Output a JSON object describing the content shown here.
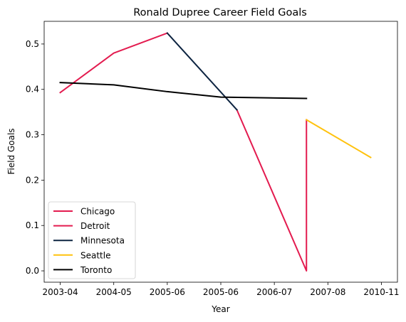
{
  "chart_data": {
    "type": "line",
    "title": "Ronald Dupree Career Field Goals",
    "xlabel": "Year",
    "ylabel": "Field Goals",
    "categories": [
      "2003-04",
      "2004-05",
      "2005-06",
      "2005-06",
      "2006-07",
      "2007-08",
      "2010-11"
    ],
    "x_tick_positions": [
      0,
      1,
      2,
      3,
      4,
      5,
      6
    ],
    "xlim": [
      -0.3,
      6.3
    ],
    "ylim": [
      -0.025,
      0.55
    ],
    "yticks": [
      0.0,
      0.1,
      0.2,
      0.3,
      0.4,
      0.5
    ],
    "ytick_labels": [
      "0.0",
      "0.1",
      "0.2",
      "0.3",
      "0.4",
      "0.5"
    ],
    "grid": false,
    "legend_position": "lower-left",
    "series": [
      {
        "name": "Chicago",
        "color": "#e31b4f",
        "points": [
          [
            0.0,
            0.393
          ],
          [
            1.0,
            0.48
          ],
          [
            2.0,
            0.524
          ]
        ]
      },
      {
        "name": "Detroit",
        "color": "#e31b4f",
        "points": [
          [
            3.3,
            0.355
          ],
          [
            4.6,
            0.0
          ],
          [
            4.6,
            0.333
          ]
        ]
      },
      {
        "name": "Minnesota",
        "color": "#0c2340",
        "points": [
          [
            2.0,
            0.524
          ],
          [
            3.3,
            0.355
          ]
        ]
      },
      {
        "name": "Seattle",
        "color": "#ffc20e",
        "points": [
          [
            4.6,
            0.333
          ],
          [
            5.8,
            0.25
          ]
        ]
      },
      {
        "name": "Toronto",
        "color": "#000000",
        "points": [
          [
            0.0,
            0.415
          ],
          [
            1.0,
            0.41
          ],
          [
            2.0,
            0.395
          ],
          [
            3.0,
            0.383
          ],
          [
            4.6,
            0.38
          ]
        ]
      }
    ]
  }
}
